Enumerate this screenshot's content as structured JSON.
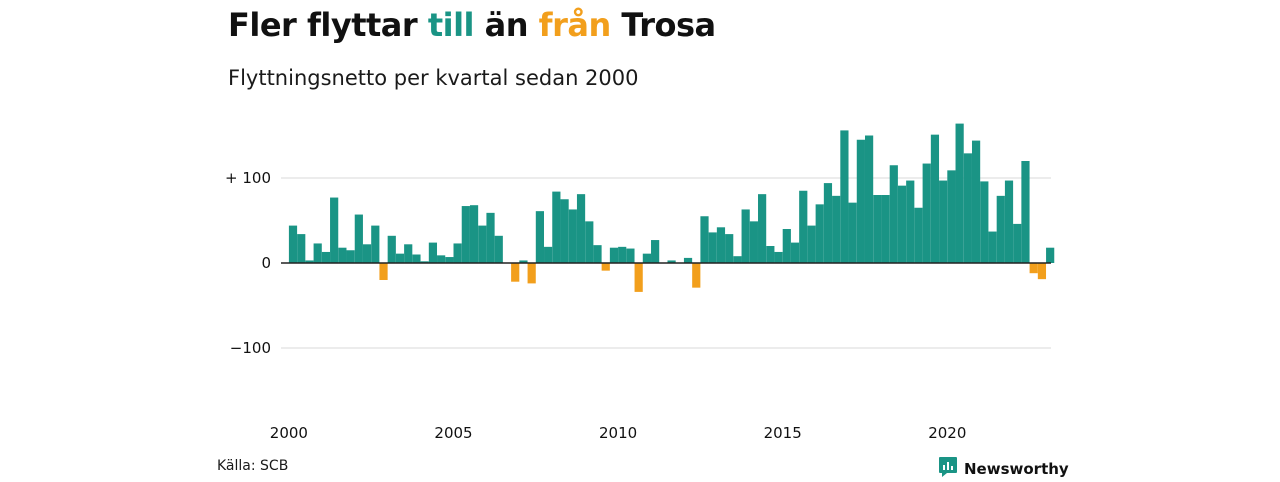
{
  "header": {
    "title_part1": "Fler flyttar ",
    "title_till": "till",
    "title_part2": " än ",
    "title_fran": "från",
    "title_part3": " Trosa",
    "subtitle": "Flyttningsnetto per kvartal sedan 2000"
  },
  "footer": {
    "source": "Källa: SCB",
    "brand": "Newsworthy",
    "brand_icon": "bar-chart-bubble-icon"
  },
  "colors": {
    "positive": "#1a9485",
    "negative": "#f29f1c",
    "grid": "#d9d9d9",
    "zero_line": "#222222",
    "brand": "#1a9485"
  },
  "chart_data": {
    "type": "bar",
    "title": "Fler flyttar till än från Trosa",
    "subtitle": "Flyttningsnetto per kvartal sedan 2000",
    "xlabel": "",
    "ylabel": "",
    "x_ticks": [
      "2000",
      "2005",
      "2010",
      "2015",
      "2020"
    ],
    "y_ticks": [
      {
        "value": 100,
        "label": "+ 100"
      },
      {
        "value": 0,
        "label": "0"
      },
      {
        "value": -100,
        "label": "−100"
      }
    ],
    "ylim": [
      -170,
      170
    ],
    "grid": true,
    "start_year": 2000,
    "periods_per_year": 4,
    "values": [
      44,
      34,
      3,
      23,
      13,
      77,
      18,
      15,
      57,
      22,
      44,
      -20,
      32,
      11,
      22,
      10,
      2,
      24,
      9,
      7,
      23,
      67,
      68,
      44,
      59,
      32,
      0,
      -22,
      3,
      -24,
      61,
      19,
      84,
      75,
      63,
      81,
      49,
      21,
      -9,
      18,
      19,
      17,
      -34,
      11,
      27,
      0,
      3,
      0,
      6,
      -29,
      55,
      36,
      42,
      34,
      8,
      63,
      49,
      81,
      20,
      13,
      40,
      24,
      85,
      44,
      69,
      94,
      79,
      156,
      71,
      145,
      150,
      80,
      80,
      115,
      91,
      97,
      65,
      117,
      151,
      97,
      109,
      164,
      129,
      144,
      96,
      37,
      79,
      97,
      46,
      120,
      -12,
      -19,
      18
    ]
  }
}
